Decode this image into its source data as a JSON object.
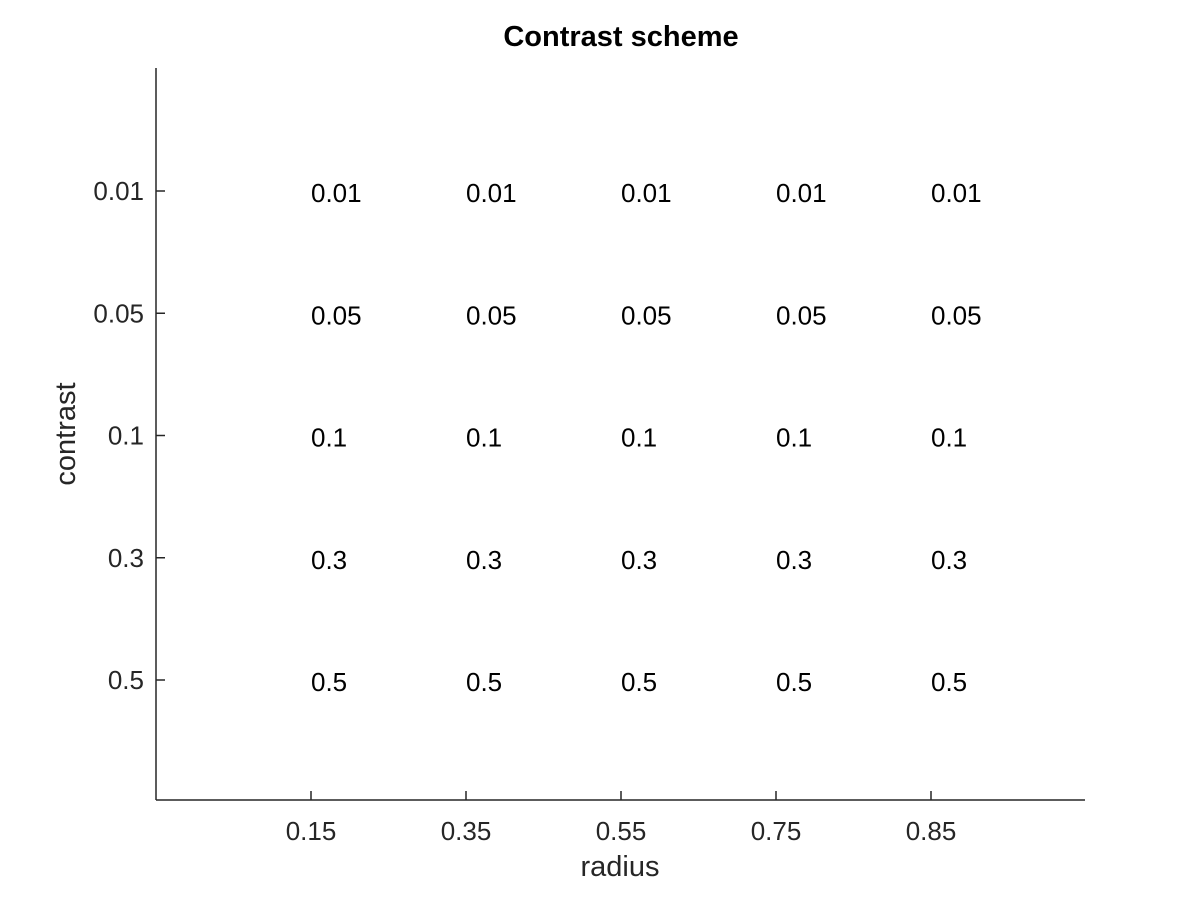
{
  "chart_data": {
    "type": "table",
    "title": "Contrast scheme",
    "xlabel": "radius",
    "ylabel": "contrast",
    "x_categories": [
      "0.15",
      "0.35",
      "0.55",
      "0.75",
      "0.85"
    ],
    "y_categories": [
      "0.01",
      "0.05",
      "0.1",
      "0.3",
      "0.5"
    ],
    "cells": [
      [
        "0.01",
        "0.01",
        "0.01",
        "0.01",
        "0.01"
      ],
      [
        "0.05",
        "0.05",
        "0.05",
        "0.05",
        "0.05"
      ],
      [
        "0.1",
        "0.1",
        "0.1",
        "0.1",
        "0.1"
      ],
      [
        "0.3",
        "0.3",
        "0.3",
        "0.3",
        "0.3"
      ],
      [
        "0.5",
        "0.5",
        "0.5",
        "0.5",
        "0.5"
      ]
    ],
    "grid": false,
    "legend": "none"
  }
}
